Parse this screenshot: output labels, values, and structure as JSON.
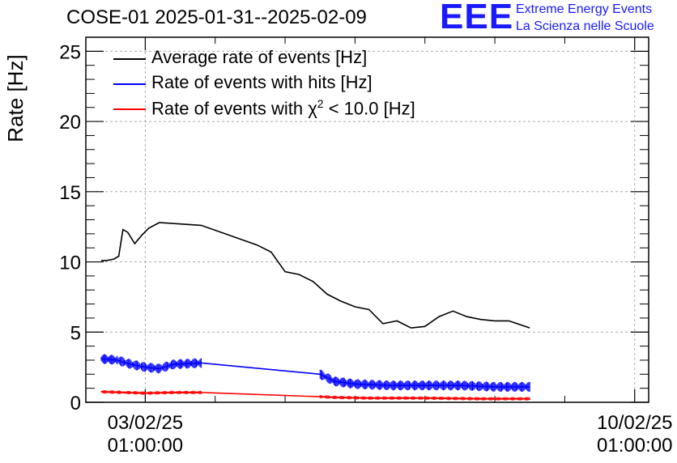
{
  "title": "COSE-01 2025-01-31--2025-02-09",
  "logo": {
    "mark": "EEE",
    "line1": "Extreme Energy Events",
    "line2": "La Scienza nelle Scuole"
  },
  "colors": {
    "average": "#000000",
    "hits": "#0000ff",
    "chi2": "#ff0000",
    "logo": "#1a1aff"
  },
  "legend": [
    {
      "label": "Average rate of events [Hz]"
    },
    {
      "label": "Rate of events with hits [Hz]"
    },
    {
      "label_prefix": "Rate of events with ",
      "symbol": "χ",
      "superscript": "2",
      "label_suffix": " < 10.0 [Hz]"
    }
  ],
  "chart_data": {
    "type": "line",
    "title": "COSE-01 2025-01-31--2025-02-09",
    "ylabel": "Rate [Hz]",
    "xlabel": "",
    "ylim": [
      0,
      26
    ],
    "xlim": [
      -0.85,
      7.2
    ],
    "x_unit": "days relative to 03/02/25 01:00:00",
    "yticks": [
      0,
      5,
      10,
      15,
      20,
      25
    ],
    "xticks": [
      {
        "x": 0,
        "label_line1": "03/02/25",
        "label_line2": "01:00:00"
      },
      {
        "x": 7,
        "label_line1": "10/02/25",
        "label_line2": "01:00:00"
      }
    ],
    "grid": true,
    "legend_position": "top-left",
    "series": [
      {
        "name": "Average rate of events [Hz]",
        "x": [
          -0.63,
          -0.55,
          -0.45,
          -0.38,
          -0.32,
          -0.25,
          -0.15,
          -0.05,
          0.05,
          0.2,
          0.8,
          1.6,
          1.8,
          2.0,
          2.2,
          2.4,
          2.6,
          2.8,
          3.0,
          3.2,
          3.4,
          3.6,
          3.8,
          4.0,
          4.2,
          4.4,
          4.6,
          4.8,
          5.0,
          5.2,
          5.5
        ],
        "values": [
          10.1,
          10.1,
          10.2,
          10.4,
          12.3,
          12.1,
          11.3,
          11.9,
          12.4,
          12.8,
          12.6,
          11.2,
          10.7,
          9.3,
          9.1,
          8.6,
          7.7,
          7.2,
          6.8,
          6.6,
          5.6,
          5.8,
          5.3,
          5.4,
          6.1,
          6.5,
          6.1,
          5.9,
          5.8,
          5.8,
          5.3
        ]
      },
      {
        "name": "Rate of events with hits [Hz]",
        "x": [
          -0.63,
          -0.4,
          -0.2,
          0.0,
          0.2,
          0.4,
          0.8,
          2.5,
          2.7,
          3.0,
          3.5,
          4.0,
          4.5,
          5.0,
          5.5
        ],
        "values": [
          3.1,
          3.0,
          2.7,
          2.5,
          2.4,
          2.7,
          2.8,
          2.0,
          1.5,
          1.3,
          1.2,
          1.2,
          1.2,
          1.1,
          1.1
        ]
      },
      {
        "name": "Rate of events with χ2 < 10.0 [Hz]",
        "x": [
          -0.63,
          -0.3,
          0.0,
          0.4,
          0.8,
          2.5,
          2.7,
          3.2,
          4.0,
          4.8,
          5.5
        ],
        "values": [
          0.75,
          0.7,
          0.65,
          0.7,
          0.7,
          0.4,
          0.35,
          0.3,
          0.3,
          0.25,
          0.25
        ]
      }
    ]
  }
}
